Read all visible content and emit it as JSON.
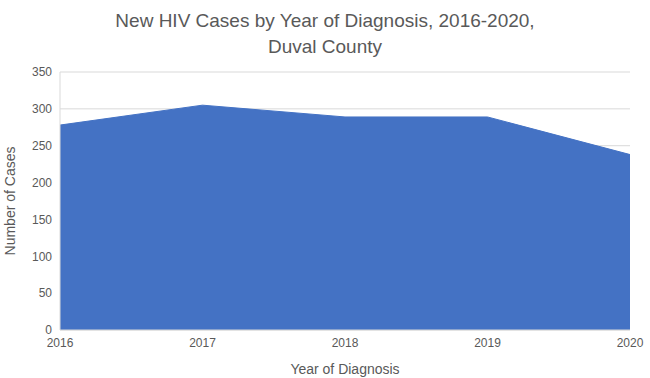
{
  "chart_data": {
    "type": "area",
    "title": "New HIV Cases by Year of Diagnosis, 2016-2020, Duval County",
    "x_label": "Year of Diagnosis",
    "y_label": "Number of Cases",
    "categories": [
      "2016",
      "2017",
      "2018",
      "2019",
      "2020"
    ],
    "values": [
      278,
      305,
      289,
      289,
      238
    ],
    "color": "#4472c4",
    "ylim": [
      0,
      350
    ],
    "yticks": [
      0,
      50,
      100,
      150,
      200,
      250,
      300,
      350
    ],
    "grid": true
  }
}
